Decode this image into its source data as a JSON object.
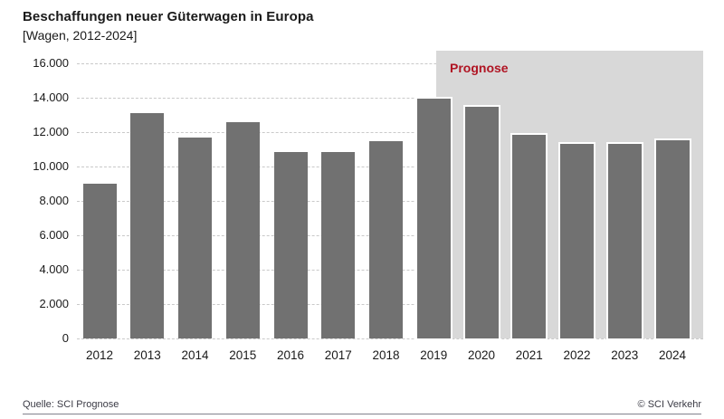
{
  "header": {
    "title": "Beschaffungen neuer Güterwagen in Europa",
    "subtitle": "[Wagen, 2012-2024]"
  },
  "chart_data": {
    "type": "bar",
    "title": "Beschaffungen neuer Güterwagen in Europa",
    "subtitle": "[Wagen, 2012-2024]",
    "unit": "Wagen",
    "categories": [
      "2012",
      "2013",
      "2014",
      "2015",
      "2016",
      "2017",
      "2018",
      "2019",
      "2020",
      "2021",
      "2022",
      "2023",
      "2024"
    ],
    "values": [
      9000,
      13100,
      11700,
      12600,
      10850,
      10850,
      11500,
      13950,
      13500,
      11850,
      11300,
      11300,
      11550
    ],
    "forecast_label": "Prognose",
    "forecast_start_index": 7,
    "y_ticks": [
      0,
      2000,
      4000,
      6000,
      8000,
      10000,
      12000,
      14000,
      16000
    ],
    "y_tick_labels": [
      "0",
      "2.000",
      "4.000",
      "6.000",
      "8.000",
      "10.000",
      "12.000",
      "14.000",
      "16.000"
    ],
    "ylim": [
      0,
      16000
    ],
    "xlabel": "",
    "ylabel": "",
    "grid": "horizontal-dashed",
    "legend": "none"
  },
  "footer": {
    "source": "Quelle: SCI Prognose",
    "copyright": "© SCI Verkehr"
  },
  "colors": {
    "bar": "#717171",
    "forecast_background": "#d8d8d8",
    "forecast_text": "#b01423",
    "gridline": "#c9c9c9",
    "text": "#1a1a1a",
    "bar_border_forecast": "#ffffff"
  }
}
